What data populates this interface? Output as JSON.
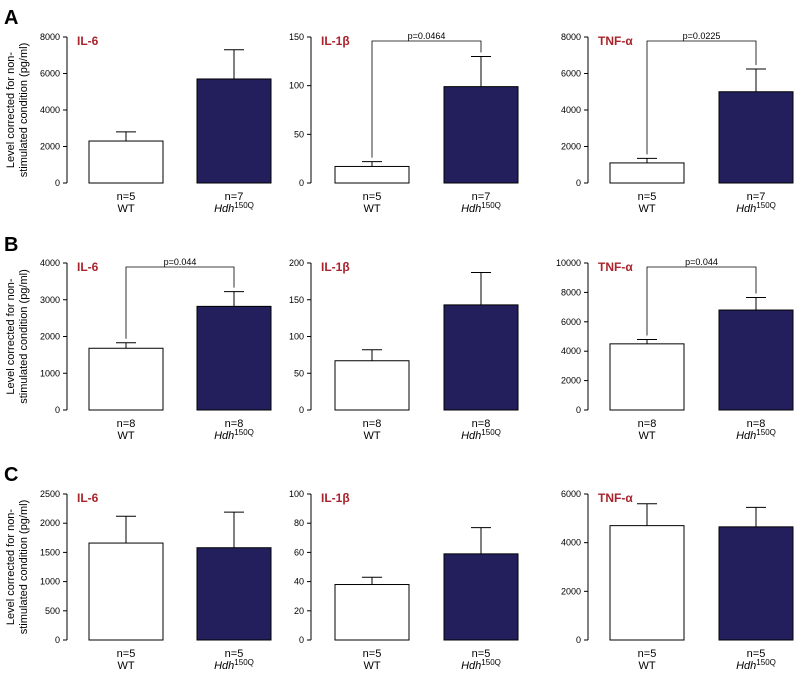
{
  "colors": {
    "wt_fill": "#ffffff",
    "hdh_fill": "#221f5c",
    "title": "#a8232c",
    "ink": "#000000"
  },
  "ylabel_line1": "Level corrected for non-",
  "ylabel_line2": "stimulated condition (pg/ml)",
  "chart_data": [
    {
      "type": "bar",
      "panel": "A",
      "title": "IL-6",
      "ylim": [
        0,
        8000
      ],
      "yticks": [
        0,
        2000,
        4000,
        6000,
        8000
      ],
      "categories": [
        {
          "n": "n=5",
          "name": "WT"
        },
        {
          "n": "n=7",
          "name": "Hdh",
          "sup": "150Q"
        }
      ],
      "values": [
        2300,
        5700
      ],
      "errors": [
        500,
        1600
      ],
      "p_value": null
    },
    {
      "type": "bar",
      "panel": "A",
      "title": "IL-1β",
      "ylim": [
        0,
        150
      ],
      "yticks": [
        0,
        50,
        100,
        150
      ],
      "categories": [
        {
          "n": "n=5",
          "name": "WT"
        },
        {
          "n": "n=7",
          "name": "Hdh",
          "sup": "150Q"
        }
      ],
      "values": [
        17,
        99
      ],
      "errors": [
        5,
        31
      ],
      "p_value": "p=0.0464"
    },
    {
      "type": "bar",
      "panel": "A",
      "title": "TNF-α",
      "ylim": [
        0,
        8000
      ],
      "yticks": [
        0,
        2000,
        4000,
        6000,
        8000
      ],
      "categories": [
        {
          "n": "n=5",
          "name": "WT"
        },
        {
          "n": "n=7",
          "name": "Hdh",
          "sup": "150Q"
        }
      ],
      "values": [
        1100,
        5000
      ],
      "errors": [
        250,
        1250
      ],
      "p_value": "p=0.0225"
    },
    {
      "type": "bar",
      "panel": "B",
      "title": "IL-6",
      "ylim": [
        0,
        4000
      ],
      "yticks": [
        0,
        1000,
        2000,
        3000,
        4000
      ],
      "categories": [
        {
          "n": "n=8",
          "name": "WT"
        },
        {
          "n": "n=8",
          "name": "Hdh",
          "sup": "150Q"
        }
      ],
      "values": [
        1680,
        2820
      ],
      "errors": [
        150,
        400
      ],
      "p_value": "p=0.044"
    },
    {
      "type": "bar",
      "panel": "B",
      "title": "IL-1β",
      "ylim": [
        0,
        200
      ],
      "yticks": [
        0,
        50,
        100,
        150,
        200
      ],
      "categories": [
        {
          "n": "n=8",
          "name": "WT"
        },
        {
          "n": "n=8",
          "name": "Hdh",
          "sup": "150Q"
        }
      ],
      "values": [
        67,
        143
      ],
      "errors": [
        15,
        44
      ],
      "p_value": null
    },
    {
      "type": "bar",
      "panel": "B",
      "title": "TNF-α",
      "ylim": [
        0,
        10000
      ],
      "yticks": [
        0,
        2000,
        4000,
        6000,
        8000,
        10000
      ],
      "categories": [
        {
          "n": "n=8",
          "name": "WT"
        },
        {
          "n": "n=8",
          "name": "Hdh",
          "sup": "150Q"
        }
      ],
      "values": [
        4500,
        6800
      ],
      "errors": [
        300,
        850
      ],
      "p_value": "p=0.044"
    },
    {
      "type": "bar",
      "panel": "C",
      "title": "IL-6",
      "ylim": [
        0,
        2500
      ],
      "yticks": [
        0,
        500,
        1000,
        1500,
        2000,
        2500
      ],
      "categories": [
        {
          "n": "n=5",
          "name": "WT"
        },
        {
          "n": "n=5",
          "name": "Hdh",
          "sup": "150Q"
        }
      ],
      "values": [
        1660,
        1580
      ],
      "errors": [
        460,
        610
      ],
      "p_value": null
    },
    {
      "type": "bar",
      "panel": "C",
      "title": "IL-1β",
      "ylim": [
        0,
        100
      ],
      "yticks": [
        0,
        20,
        40,
        60,
        80,
        100
      ],
      "categories": [
        {
          "n": "n=5",
          "name": "WT"
        },
        {
          "n": "n=5",
          "name": "Hdh",
          "sup": "150Q"
        }
      ],
      "values": [
        38,
        59
      ],
      "errors": [
        5,
        18
      ],
      "p_value": null
    },
    {
      "type": "bar",
      "panel": "C",
      "title": "TNF-α",
      "ylim": [
        0,
        6000
      ],
      "yticks": [
        0,
        2000,
        4000,
        6000
      ],
      "categories": [
        {
          "n": "n=5",
          "name": "WT"
        },
        {
          "n": "n=5",
          "name": "Hdh",
          "sup": "150Q"
        }
      ],
      "values": [
        4700,
        4650
      ],
      "errors": [
        900,
        800
      ],
      "p_value": null
    }
  ]
}
